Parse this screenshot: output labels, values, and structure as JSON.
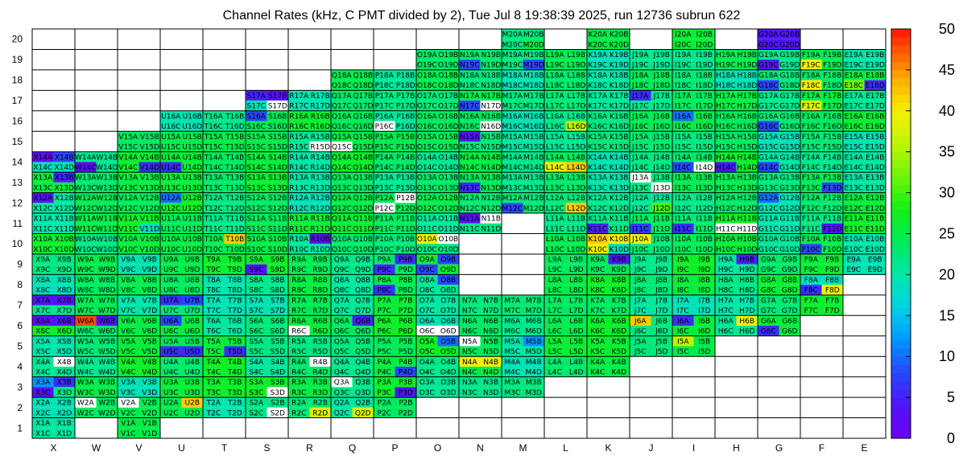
{
  "chart_data": {
    "type": "heatmap",
    "title": "Channel Rates (kHz, C PMT divided by 2), Tue Jul  8 19:38:39 2025, run 12736 subrun 622",
    "columns": [
      "X",
      "W",
      "V",
      "U",
      "T",
      "S",
      "R",
      "Q",
      "P",
      "O",
      "N",
      "M",
      "L",
      "K",
      "J",
      "I",
      "H",
      "G",
      "F",
      "E"
    ],
    "rows": [
      "1",
      "2",
      "3",
      "4",
      "5",
      "6",
      "7",
      "8",
      "9",
      "10",
      "11",
      "12",
      "13",
      "14",
      "15",
      "16",
      "17",
      "18",
      "19",
      "20"
    ],
    "colorbar": {
      "min": 0,
      "max": 50,
      "ticks": [
        "0",
        "5",
        "10",
        "15",
        "20",
        "25",
        "30",
        "35",
        "40",
        "45",
        "50"
      ]
    },
    "grid": true,
    "row_ranges": [
      {
        "row": 1,
        "from": "X",
        "to": "V",
        "skip": [
          "W"
        ]
      },
      {
        "row": 2,
        "from": "X",
        "to": "P"
      },
      {
        "row": 3,
        "from": "X",
        "to": "M"
      },
      {
        "row": 4,
        "from": "X",
        "to": "K",
        "skip": []
      },
      {
        "row": 5,
        "from": "X",
        "to": "I"
      },
      {
        "row": 6,
        "from": "X",
        "to": "G"
      },
      {
        "row": 7,
        "from": "X",
        "to": "F"
      },
      {
        "row": 8,
        "from": "X",
        "to": "F",
        "skip": [
          "N",
          "M"
        ]
      },
      {
        "row": 9,
        "from": "X",
        "to": "E",
        "skip": [
          "N",
          "M"
        ]
      },
      {
        "row": 10,
        "from": "X",
        "to": "E",
        "skip": [
          "N",
          "M"
        ]
      },
      {
        "row": 11,
        "from": "X",
        "to": "E",
        "skip": [
          "M"
        ]
      },
      {
        "row": 12,
        "from": "X",
        "to": "E"
      },
      {
        "row": 13,
        "from": "X",
        "to": "E"
      },
      {
        "row": 14,
        "from": "X",
        "to": "E"
      },
      {
        "row": 15,
        "from": "V",
        "to": "E"
      },
      {
        "row": 16,
        "from": "U",
        "to": "E"
      },
      {
        "row": 17,
        "from": "S",
        "to": "E"
      },
      {
        "row": 18,
        "from": "Q",
        "to": "E"
      },
      {
        "row": 19,
        "from": "O",
        "to": "E"
      },
      {
        "row": 20,
        "from": "M",
        "to": "G",
        "skip": [
          "L",
          "J",
          "H"
        ]
      }
    ],
    "base_value": 24,
    "special_cells": {
      "X14A": 2,
      "X14B": 8,
      "W14C": 2,
      "X13B": 5,
      "X12A": 3,
      "X7A": 4,
      "X7B": 3,
      "X6A": 3,
      "X6B": 4,
      "W6A": 48,
      "W6B": 4,
      "X3A": 12,
      "X3B": 6,
      "X3C": 4,
      "X4B": 0,
      "W2A": 0,
      "V2A": 0,
      "U2B": 42,
      "T10B": 42,
      "S16A": 8,
      "S17A": 5,
      "S17B": 3,
      "S17D": 0,
      "R15D": 0,
      "Q15C": 0,
      "P16C": 0,
      "P12B": 0,
      "P12C": 0,
      "Q6B": 5,
      "S9C": 4,
      "R6C": 0,
      "O6C": 0,
      "O6D": 0,
      "Q3A": 0,
      "S3D": 0,
      "S2D": 0,
      "R4B": 0,
      "O10A": 40,
      "O10B": 0,
      "R10B": 3,
      "Q2D": 38,
      "R2D": 38,
      "N19C": 8,
      "N17C": 8,
      "N17D": 0,
      "N16D": 0,
      "N15A": 4,
      "N13C": 6,
      "N11A": 3,
      "N11B": 0,
      "N4A": 40,
      "N4B": 40,
      "N5A": 0,
      "M20A": 22,
      "M20B": 22,
      "M20C": 22,
      "M19D": 8,
      "M12C": 8,
      "M5B": 12,
      "L16D": 36,
      "L14C": 40,
      "L14D": 42,
      "L12D": 42,
      "K10A": 42,
      "K10B": 40,
      "K10C": 40,
      "J10A": 40,
      "J6A": 42,
      "H6B": 40,
      "K9B": 4,
      "J17A": 6,
      "K11C": 5,
      "J11C": 7,
      "I11C": 6,
      "I14D": 0,
      "H11C": 0,
      "H11D": 0,
      "H9B": 5,
      "H14C": 4,
      "G20A": 4,
      "G20B": 4,
      "G20C": 4,
      "G20D": 4,
      "G19C": 4,
      "G18C": 8,
      "G16C": 8,
      "G12A": 10,
      "G14C": 8,
      "G6C": 6,
      "F18C": 40,
      "F17C": 38,
      "E18D": 6,
      "E18C": 32,
      "F13D": 8,
      "F11D": 4,
      "F10C": 8,
      "F8C": 6,
      "F8D": 40,
      "F19C": 40,
      "U6A": 8,
      "U5C": 6,
      "U5D": 6,
      "T5D": 6,
      "U7A": 6,
      "U7B": 8,
      "U12A": 10,
      "U14C": 6,
      "V14D": 6,
      "P9C": 6,
      "P9B": 6,
      "P8C": 6,
      "P3D": 4,
      "P4D": 8,
      "O9B": 8,
      "O9C": 8,
      "O8B": 8,
      "O5B": 10,
      "I16A": 10,
      "J12D": 30,
      "J13A": 0,
      "J13D": 0,
      "I6A": 6,
      "I5A": 36,
      "I14C": 8
    }
  }
}
